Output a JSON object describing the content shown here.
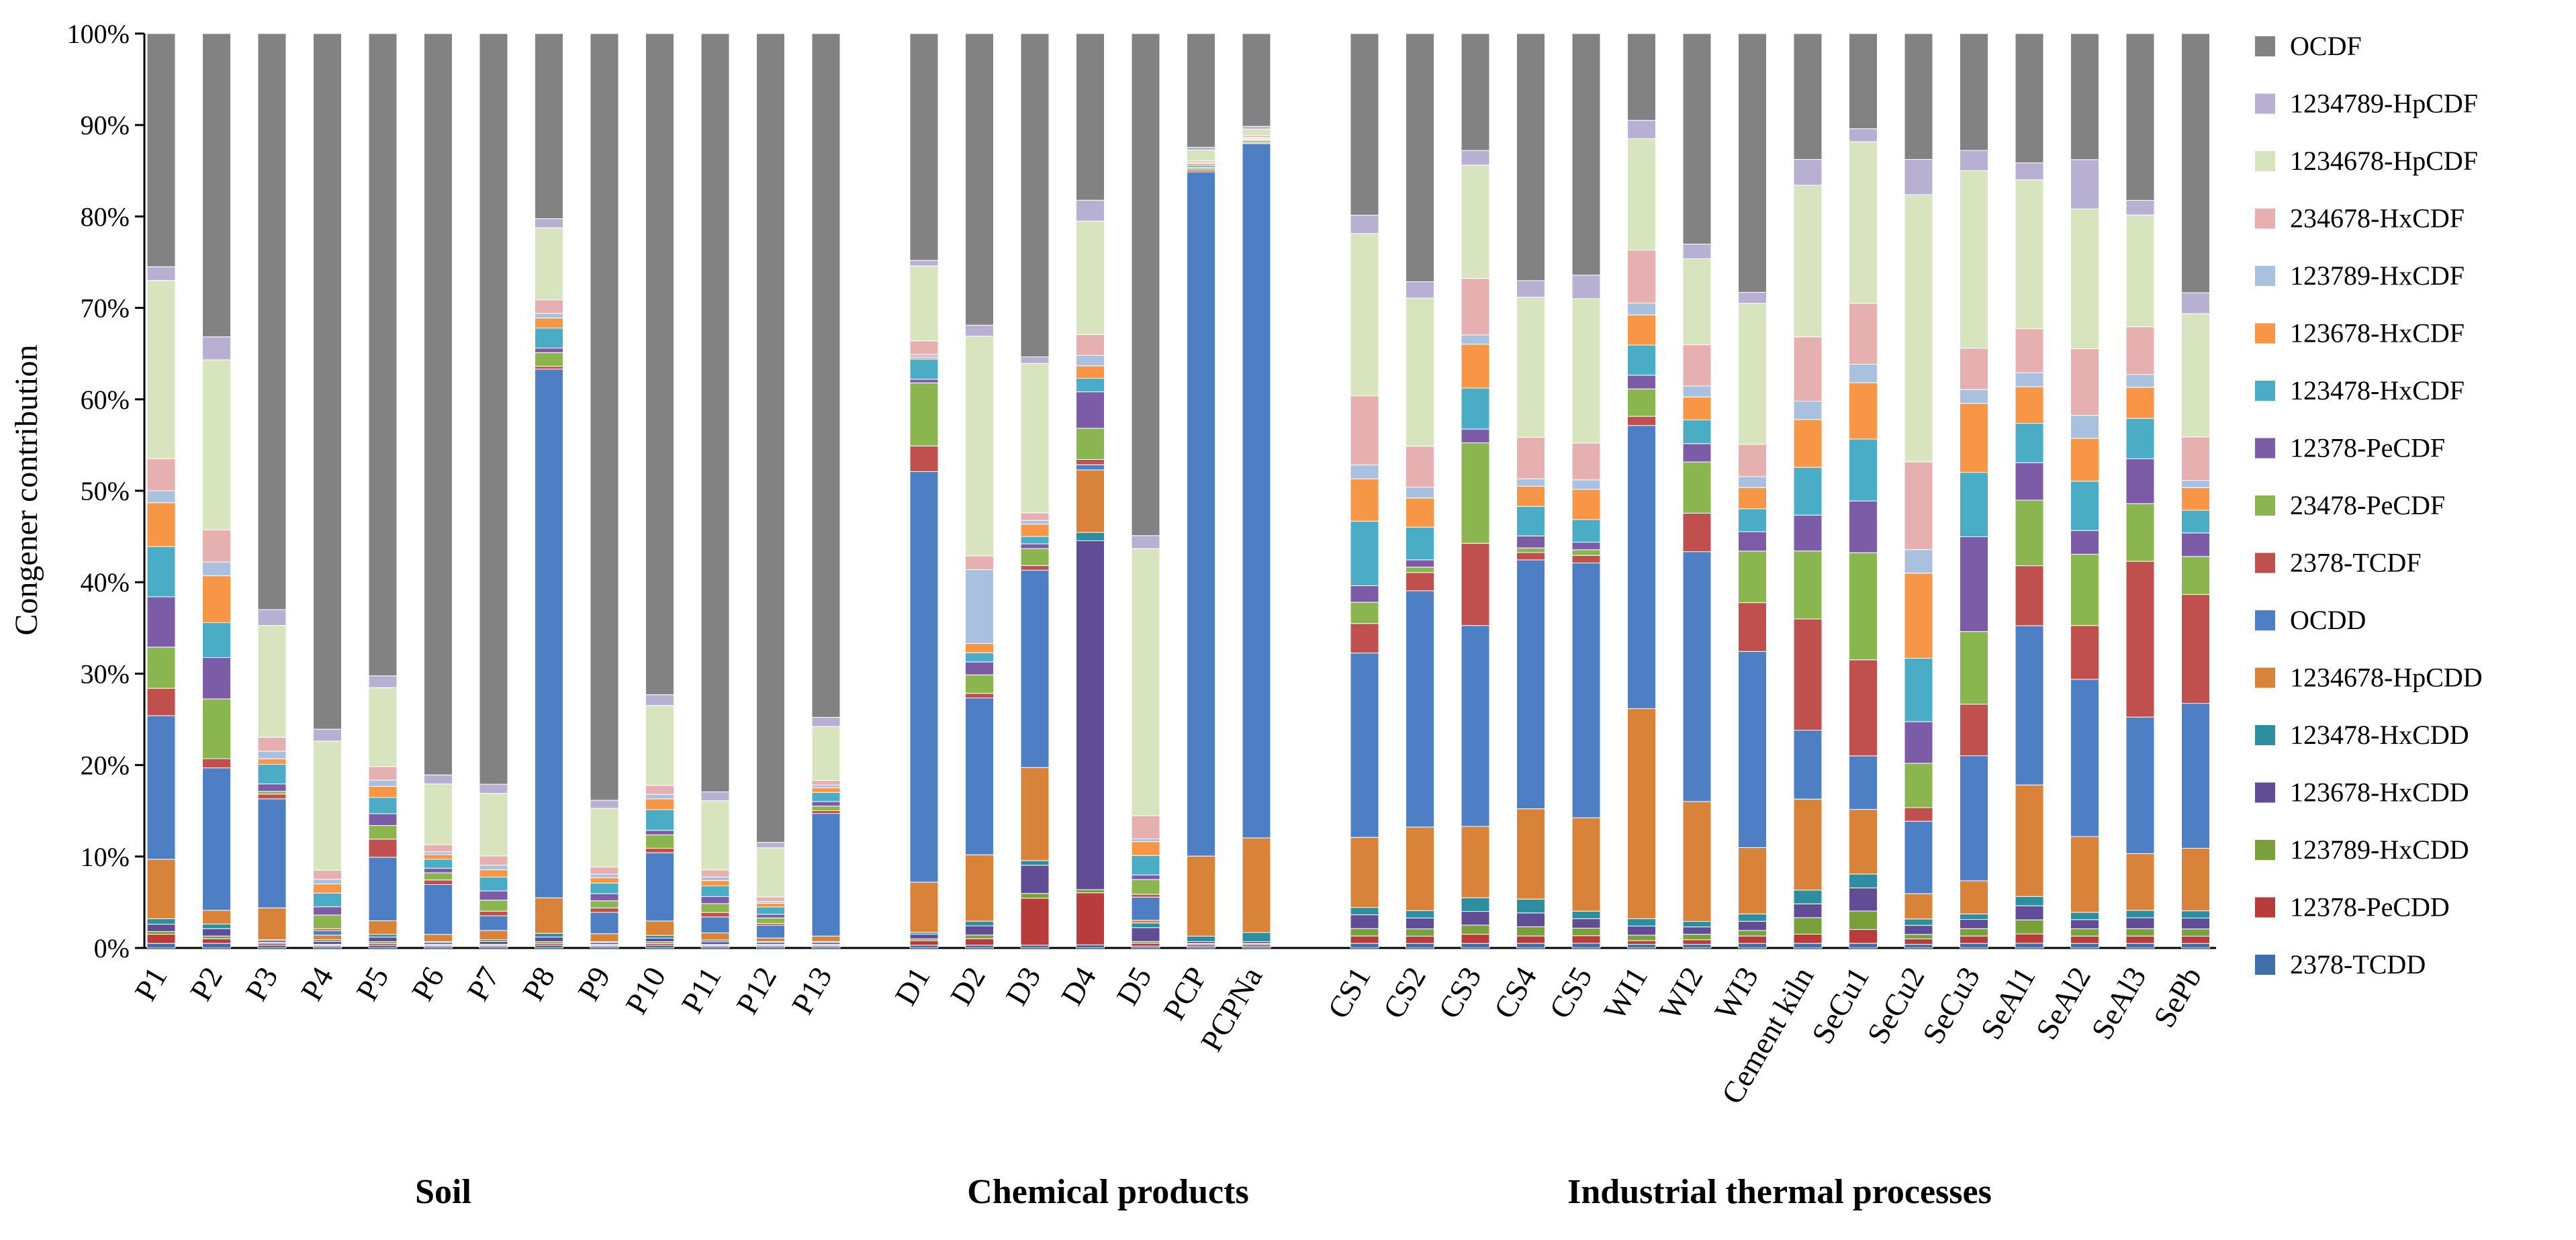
{
  "chart_data": {
    "type": "bar",
    "stacked": true,
    "percent_stacked": true,
    "ylabel": "Congener contribution",
    "ylim": [
      0,
      100
    ],
    "y_ticks": [
      "0%",
      "10%",
      "20%",
      "30%",
      "40%",
      "50%",
      "60%",
      "70%",
      "80%",
      "90%",
      "100%"
    ],
    "grid": false,
    "legend_position": "right",
    "group_labels": [
      {
        "name": "Soil",
        "from": 0,
        "to": 12
      },
      {
        "name": "Chemical products",
        "from": 13,
        "to": 19
      },
      {
        "name": "Industrial thermal processes",
        "from": 20,
        "to": 35
      }
    ],
    "categories": [
      "P1",
      "P2",
      "P3",
      "P4",
      "P5",
      "P6",
      "P7",
      "P8",
      "P9",
      "P10",
      "P11",
      "P12",
      "P13",
      "D1",
      "D2",
      "D3",
      "D4",
      "D5",
      "PCP",
      "PCPNa",
      "CS1",
      "CS2",
      "CS3",
      "CS4",
      "CS5",
      "WI1",
      "WI2",
      "WI3",
      "Cement kiln",
      "SeCu1",
      "SeCu2",
      "SeCu3",
      "SeAl1",
      "SeAl2",
      "SeAl3",
      "SePb"
    ],
    "series": [
      {
        "name": "2378-TCDD",
        "color": "#3f6fa8",
        "values": [
          0.5,
          0.5,
          0.3,
          0.2,
          0.3,
          0.2,
          0.2,
          0.3,
          0.2,
          0.3,
          0.2,
          0.2,
          0.2,
          0.3,
          0.3,
          0.3,
          0.3,
          0.2,
          0.2,
          0.2,
          0.5,
          0.5,
          0.5,
          0.5,
          0.5,
          0.4,
          0.4,
          0.5,
          0.5,
          0.5,
          0.4,
          0.5,
          0.5,
          0.5,
          0.5,
          0.5
        ]
      },
      {
        "name": "12378-PeCDD",
        "color": "#b83c3c",
        "values": [
          1.0,
          0.5,
          0.2,
          0.1,
          0.2,
          0.1,
          0.1,
          0.2,
          0.1,
          0.2,
          0.1,
          0.1,
          0.1,
          0.5,
          0.7,
          5.0,
          5.0,
          0.3,
          0.2,
          0.2,
          0.8,
          0.8,
          1.0,
          0.8,
          0.8,
          0.4,
          0.5,
          0.8,
          1.0,
          1.5,
          0.6,
          0.8,
          1.0,
          0.8,
          0.8,
          0.8
        ]
      },
      {
        "name": "123789-HxCDD",
        "color": "#7aa03c",
        "values": [
          0.3,
          0.3,
          0.1,
          0.1,
          0.2,
          0.1,
          0.1,
          0.2,
          0.1,
          0.2,
          0.1,
          0.1,
          0.1,
          0.2,
          0.4,
          0.5,
          0.3,
          0.2,
          0.1,
          0.1,
          0.8,
          0.8,
          1.0,
          1.0,
          0.8,
          0.6,
          0.6,
          0.6,
          1.8,
          2.0,
          0.5,
          0.8,
          1.5,
          0.8,
          0.8,
          0.8
        ]
      },
      {
        "name": "123678-HxCDD",
        "color": "#604d96",
        "values": [
          0.8,
          0.8,
          0.2,
          0.3,
          0.5,
          0.2,
          0.3,
          0.5,
          0.2,
          0.4,
          0.3,
          0.2,
          0.2,
          0.5,
          1.0,
          3.0,
          33.5,
          1.5,
          0.2,
          0.2,
          1.5,
          1.2,
          1.5,
          1.5,
          1.0,
          1.0,
          0.8,
          1.0,
          1.5,
          2.5,
          1.0,
          1.0,
          1.5,
          1.0,
          1.2,
          1.2
        ]
      },
      {
        "name": "123478-HxCDD",
        "color": "#2d8ea0",
        "values": [
          0.6,
          0.5,
          0.1,
          0.2,
          0.3,
          0.1,
          0.2,
          0.4,
          0.1,
          0.3,
          0.2,
          0.1,
          0.1,
          0.2,
          0.5,
          0.5,
          0.8,
          0.5,
          0.6,
          1.0,
          0.8,
          0.8,
          1.5,
          1.5,
          0.8,
          0.8,
          0.6,
          0.8,
          1.5,
          1.5,
          0.7,
          0.6,
          1.0,
          0.8,
          0.8,
          0.8
        ]
      },
      {
        "name": "1234678-HpCDD",
        "color": "#d9823a",
        "values": [
          6.5,
          1.5,
          3.4,
          0.5,
          1.5,
          0.8,
          1.0,
          3.9,
          0.9,
          1.6,
          0.8,
          0.4,
          0.6,
          5.5,
          7.2,
          9.9,
          6.0,
          0.3,
          8.8,
          10.4,
          7.6,
          9.2,
          7.8,
          9.8,
          9.9,
          23.0,
          13.1,
          7.2,
          9.9,
          7.0,
          2.8,
          3.6,
          11.9,
          8.3,
          6.2,
          6.9
        ]
      },
      {
        "name": "OCDD",
        "color": "#4e7fc4",
        "values": [
          15.7,
          15.5,
          11.7,
          0.5,
          7.0,
          5.5,
          1.6,
          58.0,
          2.4,
          7.6,
          1.8,
          1.4,
          13.4,
          44.9,
          17.0,
          21.0,
          0.5,
          2.5,
          75.2,
          76.3,
          20.0,
          26.0,
          22.0,
          27.0,
          27.0,
          31.0,
          27.3,
          21.3,
          7.5,
          5.8,
          8.0,
          13.6,
          17.0,
          17.2,
          14.9,
          16.0
        ]
      },
      {
        "name": "2378-TCDF",
        "color": "#c0504d",
        "values": [
          3.0,
          1.0,
          0.5,
          0.2,
          2.0,
          0.5,
          0.5,
          0.3,
          0.5,
          0.5,
          0.5,
          0.2,
          0.3,
          2.8,
          0.5,
          0.5,
          0.5,
          0.3,
          0.2,
          0.1,
          3.2,
          2.0,
          9.0,
          0.8,
          0.8,
          1.0,
          4.2,
          5.3,
          12.1,
          10.4,
          1.5,
          5.6,
          6.4,
          5.9,
          17.0,
          12.0
        ]
      },
      {
        "name": "23478-PeCDF",
        "color": "#8bb54e",
        "values": [
          4.5,
          6.5,
          0.3,
          1.5,
          1.5,
          0.8,
          1.2,
          1.5,
          0.8,
          1.5,
          1.0,
          0.6,
          0.5,
          6.9,
          2.0,
          1.8,
          3.0,
          1.6,
          0.2,
          0.2,
          2.3,
          0.6,
          11.0,
          0.5,
          0.6,
          3.0,
          5.6,
          5.6,
          7.4,
          11.6,
          4.9,
          7.9,
          7.0,
          7.8,
          6.3,
          4.2
        ]
      },
      {
        "name": "12378-PeCDF",
        "color": "#7c5ca7",
        "values": [
          5.5,
          4.5,
          0.8,
          0.9,
          1.3,
          0.5,
          1.0,
          0.5,
          0.8,
          0.5,
          0.8,
          0.4,
          0.5,
          0.4,
          1.4,
          0.5,
          3.5,
          0.5,
          0.1,
          0.1,
          1.8,
          0.8,
          1.5,
          1.3,
          0.8,
          1.5,
          2.0,
          2.1,
          3.9,
          5.6,
          4.6,
          10.3,
          4.0,
          2.6,
          4.9,
          2.6
        ]
      },
      {
        "name": "123478-HxCDF",
        "color": "#4bacc6",
        "values": [
          5.5,
          3.8,
          2.1,
          1.5,
          1.8,
          1.0,
          1.5,
          2.2,
          1.2,
          2.3,
          1.2,
          0.8,
          1.0,
          2.2,
          1.0,
          0.8,
          1.3,
          2.1,
          0.2,
          0.1,
          7.0,
          3.6,
          4.5,
          3.2,
          2.4,
          3.3,
          2.6,
          2.5,
          5.2,
          6.7,
          7.0,
          7.0,
          4.2,
          5.4,
          4.4,
          2.5
        ]
      },
      {
        "name": "123678-HxCDF",
        "color": "#f79646",
        "values": [
          4.8,
          5.1,
          0.6,
          1.0,
          1.2,
          0.5,
          0.8,
          1.1,
          0.6,
          1.2,
          0.6,
          0.4,
          0.5,
          0.2,
          1.0,
          1.3,
          1.2,
          1.5,
          0.2,
          0.1,
          4.6,
          3.2,
          4.8,
          2.2,
          3.2,
          3.3,
          2.5,
          2.3,
          5.2,
          6.1,
          9.4,
          7.5,
          3.9,
          4.7,
          3.4,
          2.5
        ]
      },
      {
        "name": "123789-HxCDF",
        "color": "#a9c0df",
        "values": [
          1.3,
          1.5,
          0.8,
          0.5,
          0.7,
          0.3,
          0.5,
          0.5,
          0.4,
          0.5,
          0.4,
          0.2,
          0.3,
          0.3,
          8.0,
          0.4,
          1.0,
          0.3,
          0.1,
          0.1,
          1.5,
          1.2,
          1.0,
          0.8,
          1.0,
          1.3,
          1.2,
          1.2,
          2.0,
          2.0,
          2.6,
          1.5,
          1.5,
          2.5,
          1.4,
          0.8
        ]
      },
      {
        "name": "234678-HxCDF",
        "color": "#e6b0b0",
        "values": [
          3.5,
          3.5,
          1.5,
          1.0,
          1.5,
          0.8,
          1.0,
          1.5,
          0.8,
          1.0,
          0.8,
          0.5,
          0.5,
          1.5,
          1.5,
          0.8,
          2.0,
          2.5,
          0.2,
          0.2,
          7.5,
          4.5,
          6.2,
          4.5,
          3.9,
          5.8,
          4.5,
          3.5,
          7.0,
          6.6,
          9.7,
          4.5,
          4.7,
          7.3,
          5.2,
          4.8
        ]
      },
      {
        "name": "1234678-HpCDF",
        "color": "#d7e4bd",
        "values": [
          19.5,
          18.5,
          12.0,
          14.1,
          8.7,
          6.7,
          6.8,
          7.9,
          6.6,
          8.9,
          7.8,
          5.4,
          5.9,
          8.2,
          23.8,
          15.9,
          10.9,
          28.9,
          1.2,
          0.7,
          17.6,
          16.3,
          12.4,
          15.2,
          15.3,
          12.2,
          9.4,
          15.3,
          16.5,
          17.5,
          29.5,
          19.3,
          15.9,
          15.3,
          12.2,
          13.6
        ]
      },
      {
        "name": "1234789-HpCDF",
        "color": "#b8b0d3",
        "values": [
          1.5,
          2.5,
          1.7,
          1.3,
          1.3,
          1.0,
          1.0,
          1.0,
          0.9,
          1.2,
          1.0,
          0.6,
          1.0,
          0.6,
          1.2,
          0.7,
          2.0,
          1.4,
          0.3,
          0.3,
          2.0,
          1.8,
          1.6,
          1.8,
          2.5,
          2.0,
          1.6,
          1.2,
          2.8,
          1.4,
          3.9,
          2.2,
          1.8,
          5.4,
          1.6,
          2.3
        ]
      },
      {
        "name": "OCDF",
        "color": "#828282",
        "values": [
          25.5,
          33.0,
          61.8,
          76.0,
          70.8,
          81.8,
          81.6,
          20.3,
          86.2,
          73.6,
          85.5,
          88.8,
          74.7,
          24.8,
          31.6,
          34.4,
          16.0,
          54.3,
          12.5,
          10.2,
          19.7,
          27.3,
          12.8,
          26.8,
          25.6,
          9.5,
          23.0,
          28.1,
          13.7,
          10.3,
          13.9,
          12.7,
          13.8,
          13.8,
          18.2,
          28.6
        ]
      }
    ]
  }
}
